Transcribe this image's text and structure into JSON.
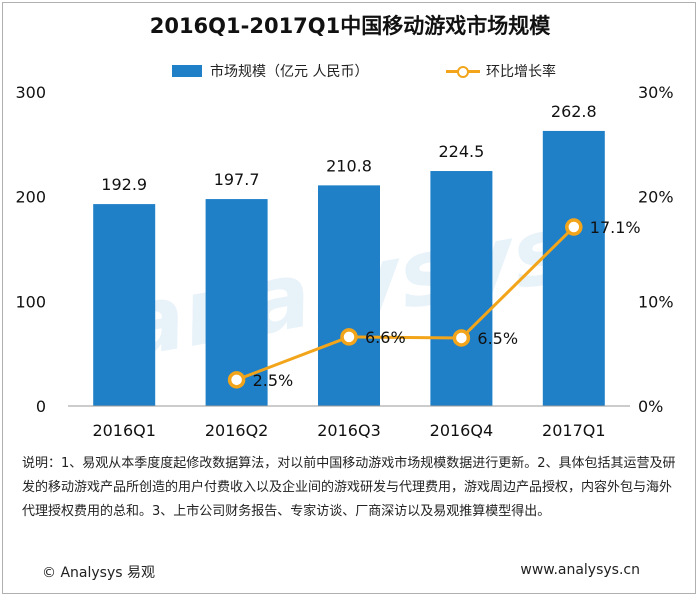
{
  "chart_data": {
    "type": "bar",
    "title": "2016Q1-2017Q1中国移动游戏市场规模",
    "categories": [
      "2016Q1",
      "2016Q2",
      "2016Q3",
      "2016Q4",
      "2017Q1"
    ],
    "series": [
      {
        "name": "市场规模（亿元 人民币）",
        "type": "bar",
        "axis": "left",
        "values": [
          192.9,
          197.7,
          210.8,
          224.5,
          262.8
        ],
        "labels": [
          "192.9",
          "197.7",
          "210.8",
          "224.5",
          "262.8"
        ]
      },
      {
        "name": "环比增长率",
        "type": "line",
        "axis": "right",
        "values": [
          null,
          2.5,
          6.6,
          6.5,
          17.1
        ],
        "labels": [
          "",
          "2.5%",
          "6.6%",
          "6.5%",
          "17.1%"
        ]
      }
    ],
    "y_left": {
      "ylim": [
        0,
        300
      ],
      "ticks": [
        "0",
        "100",
        "200",
        "300"
      ]
    },
    "y_right": {
      "ylim": [
        0,
        30
      ],
      "ticks": [
        "0%",
        "10%",
        "20%",
        "30%"
      ]
    },
    "grid": false,
    "legend": "top"
  },
  "colors": {
    "bar": "#1f7fc7",
    "line": "#f2a51a"
  },
  "note": "说明：1、易观从本季度度起修改数据算法，对以前中国移动游戏市场规模数据进行更新。2、具体包括其运营及研发的移动游戏产品所创造的用户付费收入以及企业间的游戏研发与代理费用，游戏周边产品授权，内容外包与海外代理授权费用的总和。3、上市公司财务报告、专家访谈、厂商深访以及易观推算模型得出。",
  "footer": {
    "copyright": "© Analysys 易观",
    "url": "www.analysys.cn"
  },
  "watermark": "analysys"
}
